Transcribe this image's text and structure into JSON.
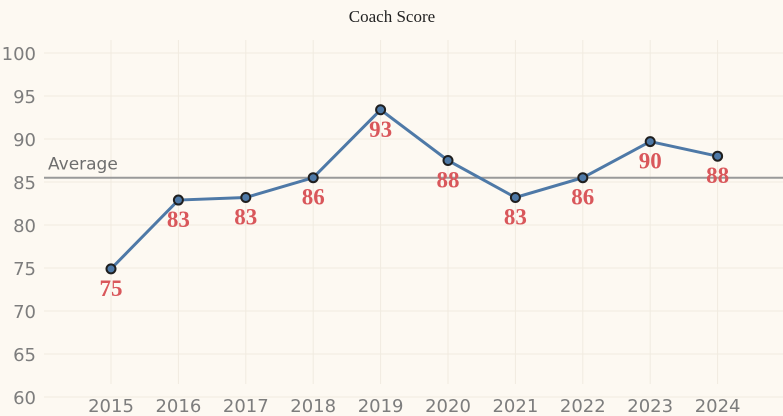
{
  "chart_data": {
    "type": "line",
    "title": "Coach Score",
    "xlabel": "",
    "ylabel": "",
    "categories": [
      "2015",
      "2016",
      "2017",
      "2018",
      "2019",
      "2020",
      "2021",
      "2022",
      "2023",
      "2024"
    ],
    "series": [
      {
        "values": [
          74.9,
          82.9,
          83.2,
          85.5,
          93.4,
          87.5,
          83.2,
          85.5,
          89.7,
          88.0
        ]
      }
    ],
    "data_labels": [
      "75",
      "83",
      "83",
      "86",
      "93",
      "88",
      "83",
      "86",
      "90",
      "88"
    ],
    "reference_line": {
      "label": "Average",
      "value": 85.5
    },
    "ylim": [
      58,
      102
    ],
    "yticks": [
      60,
      65,
      70,
      75,
      80,
      85,
      90,
      95,
      100
    ],
    "grid": true,
    "colors": {
      "line": "#4e79a7",
      "point_fill": "#4e79a7",
      "point_stroke": "#1f1f1f",
      "data_label": "#d9575b",
      "reference_line": "#9a9a9a",
      "background": "#fdf9f2"
    }
  }
}
